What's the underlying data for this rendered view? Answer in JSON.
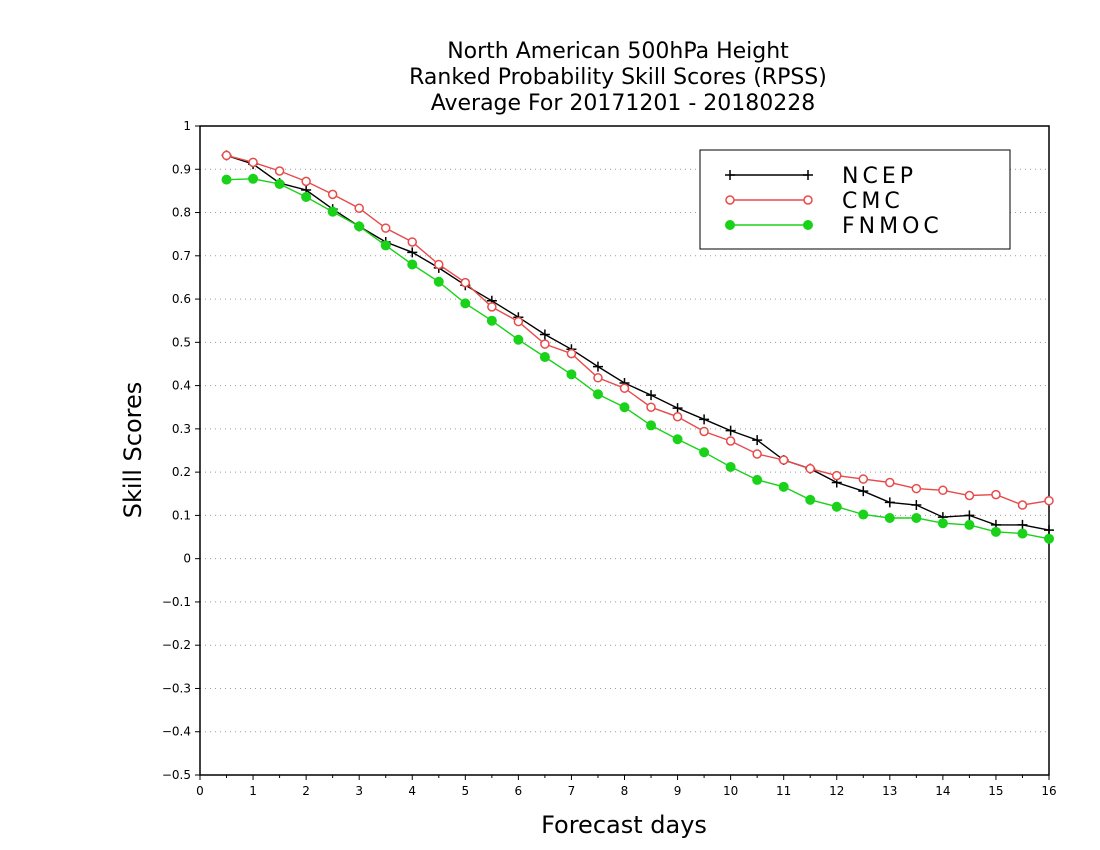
{
  "chart_data": {
    "type": "line",
    "title": [
      "North American 500hPa Height",
      "Ranked Probability Skill Scores (RPSS)",
      "Average For 20171201 - 20180228"
    ],
    "xlabel": "Forecast days",
    "ylabel": "Skill Scores",
    "xlim": [
      0,
      16
    ],
    "ylim": [
      -0.5,
      1
    ],
    "xticks": [
      0,
      1,
      2,
      3,
      4,
      5,
      6,
      7,
      8,
      9,
      10,
      11,
      12,
      13,
      14,
      15,
      16
    ],
    "yticks": [
      -0.5,
      -0.4,
      -0.3,
      -0.2,
      -0.1,
      0,
      0.1,
      0.2,
      0.3,
      0.4,
      0.5,
      0.6,
      0.7,
      0.8,
      0.9,
      1
    ],
    "grid": "horizontal dotted",
    "legend_position": "top-right",
    "x": [
      0.5,
      1,
      1.5,
      2,
      2.5,
      3,
      3.5,
      4,
      4.5,
      5,
      5.5,
      6,
      6.5,
      7,
      7.5,
      8,
      8.5,
      9,
      9.5,
      10,
      10.5,
      11,
      11.5,
      12,
      12.5,
      13,
      13.5,
      14,
      14.5,
      15,
      15.5,
      16
    ],
    "series": [
      {
        "name": "NCEP",
        "color": "#000000",
        "marker": "plus",
        "values": [
          0.932,
          0.912,
          0.868,
          0.852,
          0.808,
          0.768,
          0.732,
          0.708,
          0.672,
          0.632,
          0.596,
          0.558,
          0.518,
          0.484,
          0.444,
          0.406,
          0.378,
          0.348,
          0.322,
          0.296,
          0.274,
          0.228,
          0.208,
          0.176,
          0.156,
          0.13,
          0.124,
          0.096,
          0.1,
          0.078,
          0.078,
          0.066
        ]
      },
      {
        "name": "CMC",
        "color": "#e84a4a",
        "marker": "open-circle",
        "values": [
          0.932,
          0.916,
          0.896,
          0.872,
          0.842,
          0.81,
          0.764,
          0.732,
          0.68,
          0.638,
          0.582,
          0.548,
          0.496,
          0.474,
          0.418,
          0.394,
          0.35,
          0.328,
          0.294,
          0.272,
          0.242,
          0.228,
          0.208,
          0.192,
          0.184,
          0.176,
          0.162,
          0.158,
          0.146,
          0.148,
          0.124,
          0.134
        ]
      },
      {
        "name": "FNMOC",
        "color": "#19d219",
        "marker": "filled-circle",
        "values": [
          0.876,
          0.878,
          0.866,
          0.836,
          0.802,
          0.768,
          0.724,
          0.68,
          0.64,
          0.59,
          0.55,
          0.506,
          0.466,
          0.426,
          0.38,
          0.35,
          0.308,
          0.276,
          0.246,
          0.212,
          0.182,
          0.166,
          0.136,
          0.12,
          0.102,
          0.094,
          0.094,
          0.082,
          0.078,
          0.062,
          0.058,
          0.046
        ]
      }
    ]
  }
}
